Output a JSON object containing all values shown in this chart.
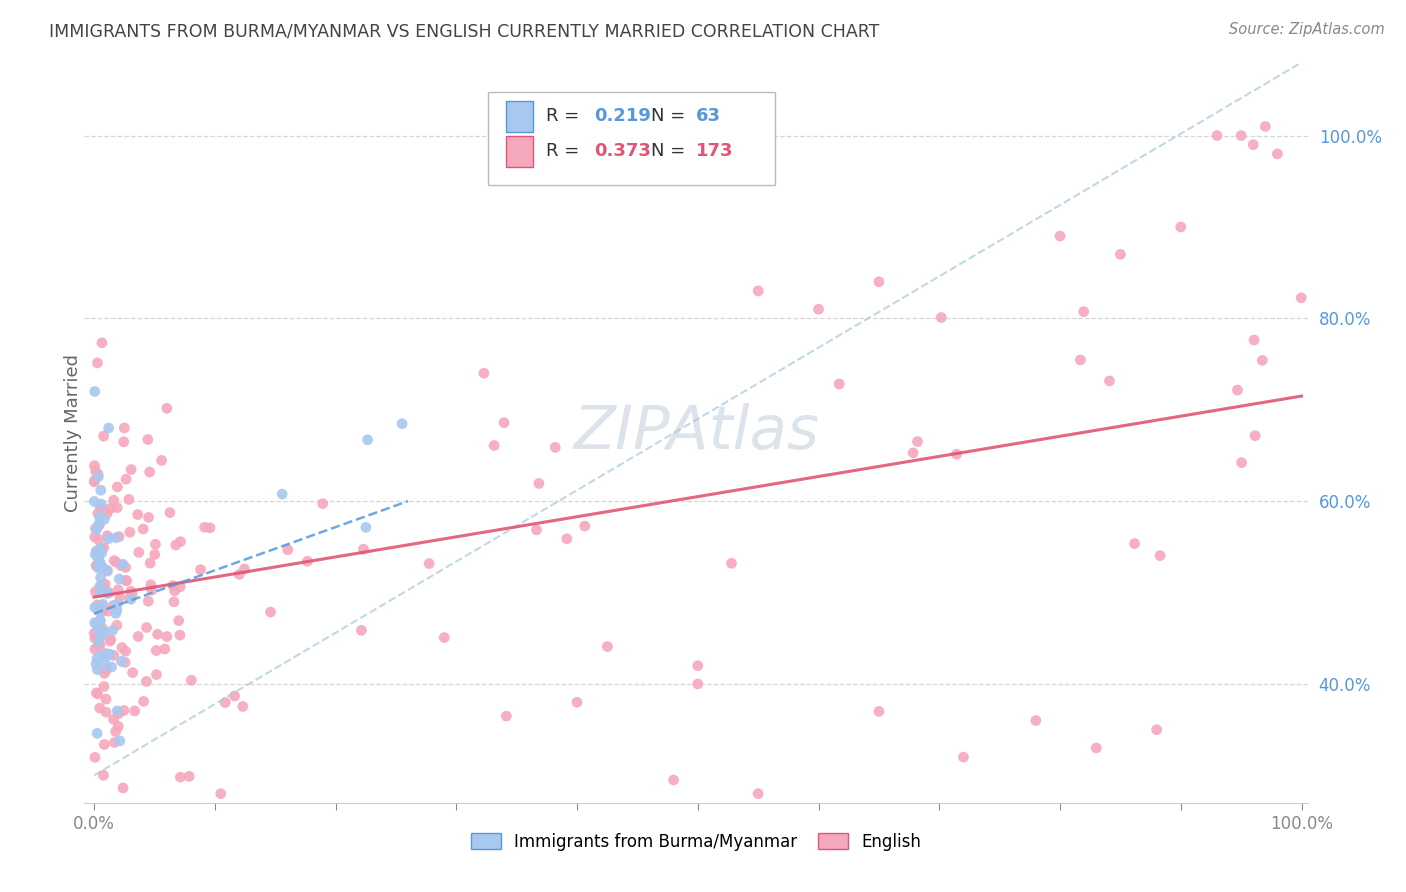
{
  "title": "IMMIGRANTS FROM BURMA/MYANMAR VS ENGLISH CURRENTLY MARRIED CORRELATION CHART",
  "source": "Source: ZipAtlas.com",
  "ylabel": "Currently Married",
  "r_blue": 0.219,
  "n_blue": 63,
  "r_pink": 0.373,
  "n_pink": 173,
  "blue_color": "#A8C8F0",
  "pink_color": "#F5A8BC",
  "blue_line_color": "#5599DD",
  "pink_line_color": "#E05575",
  "dashed_line_color": "#AACCDD",
  "grid_color": "#CCCCCC",
  "background_color": "#FFFFFF",
  "title_color": "#444444",
  "source_color": "#888888",
  "watermark_color": "#AABBCC",
  "right_tick_color": "#5599DD",
  "xlim": [
    -0.008,
    1.005
  ],
  "ylim": [
    0.27,
    1.08
  ],
  "yticks": [
    0.4,
    0.6,
    0.8,
    1.0
  ],
  "pink_solid_line": {
    "x0": 0.0,
    "y0": 0.495,
    "x1": 1.0,
    "y1": 0.715
  },
  "dashed_line": {
    "x0": 0.0,
    "y0": 0.3,
    "x1": 1.0,
    "y1": 1.08
  }
}
